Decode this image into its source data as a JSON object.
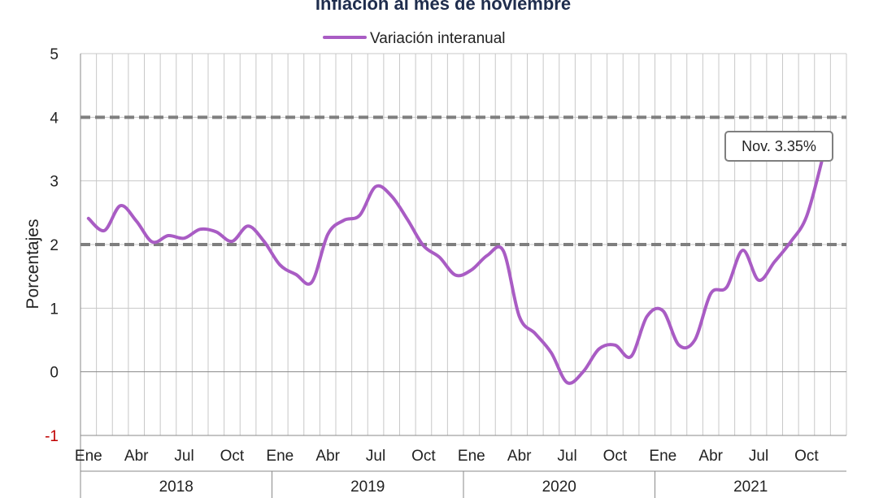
{
  "chart_data": {
    "type": "line",
    "title": "Inflación al mes de noviembre",
    "ylabel": "Porcentajes",
    "ylim": [
      -1,
      5
    ],
    "yticks": [
      "-1",
      "0",
      "1",
      "2",
      "3",
      "4",
      "5"
    ],
    "negative_tick_color": "#c00000",
    "grid": true,
    "legend_position": "top-center",
    "month_tick_labels": [
      "Ene",
      "Abr",
      "Jul",
      "Oct"
    ],
    "years": [
      "2018",
      "2019",
      "2020",
      "2021"
    ],
    "reference_lines": [
      2,
      4
    ],
    "reference_line_color": "#7f7f7f",
    "series": [
      {
        "name": "Variación interanual",
        "color": "#a95cc4",
        "x": [
          "2018-01",
          "2018-02",
          "2018-03",
          "2018-04",
          "2018-05",
          "2018-06",
          "2018-07",
          "2018-08",
          "2018-09",
          "2018-10",
          "2018-11",
          "2018-12",
          "2019-01",
          "2019-02",
          "2019-03",
          "2019-04",
          "2019-05",
          "2019-06",
          "2019-07",
          "2019-08",
          "2019-09",
          "2019-10",
          "2019-11",
          "2019-12",
          "2020-01",
          "2020-02",
          "2020-03",
          "2020-04",
          "2020-05",
          "2020-06",
          "2020-07",
          "2020-08",
          "2020-09",
          "2020-10",
          "2020-11",
          "2020-12",
          "2021-01",
          "2021-02",
          "2021-03",
          "2021-04",
          "2021-05",
          "2021-06",
          "2021-07",
          "2021-08",
          "2021-09",
          "2021-10",
          "2021-11"
        ],
        "values": [
          2.41,
          2.22,
          2.61,
          2.37,
          2.04,
          2.14,
          2.1,
          2.24,
          2.2,
          2.05,
          2.29,
          2.05,
          1.68,
          1.53,
          1.41,
          2.16,
          2.38,
          2.46,
          2.91,
          2.76,
          2.39,
          1.98,
          1.8,
          1.52,
          1.6,
          1.83,
          1.9,
          0.87,
          0.6,
          0.3,
          -0.17,
          0.0,
          0.36,
          0.42,
          0.24,
          0.87,
          0.96,
          0.42,
          0.5,
          1.23,
          1.33,
          1.91,
          1.44,
          1.73,
          2.04,
          2.44,
          3.35
        ]
      }
    ],
    "annotation": {
      "text": "Nov. 3.35%",
      "x": "2021-11",
      "y": 3.35
    }
  }
}
